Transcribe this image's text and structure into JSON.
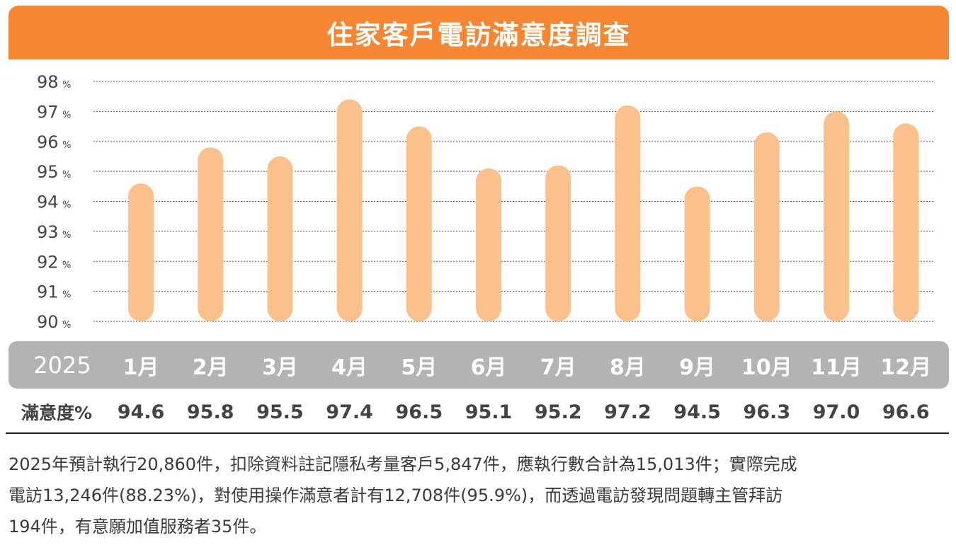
{
  "title": "住家客戶電訪滿意度調查",
  "colors": {
    "banner": "#f58634",
    "bar": "#fbc18c",
    "axis_band": "#b3b3b3"
  },
  "chart_data": {
    "type": "bar",
    "title": "住家客戶電訪滿意度調查",
    "year_label": "2025",
    "categories": [
      "1月",
      "2月",
      "3月",
      "4月",
      "5月",
      "6月",
      "7月",
      "8月",
      "9月",
      "10月",
      "11月",
      "12月"
    ],
    "values": [
      94.6,
      95.8,
      95.5,
      97.4,
      96.5,
      95.1,
      95.2,
      97.2,
      94.5,
      96.3,
      97.0,
      96.6
    ],
    "value_labels": [
      "94.6",
      "95.8",
      "95.5",
      "97.4",
      "96.5",
      "95.1",
      "95.2",
      "97.2",
      "94.5",
      "96.3",
      "97.0",
      "96.6"
    ],
    "row_label": "滿意度%",
    "ylim": [
      90,
      98
    ],
    "yticks": [
      "98",
      "97",
      "96",
      "95",
      "94",
      "93",
      "92",
      "91",
      "90"
    ],
    "ytick_unit": "%",
    "grid": true
  },
  "description": {
    "lines": [
      "2025年預計執行20,860件，扣除資料註記隱私考量客戶5,847件，應執行數合計為15,013件；實際完成",
      "電訪13,246件(88.23%)，對使用操作滿意者計有12,708件(95.9%)，而透過電訪發現問題轉主管拜訪",
      "194件，有意願加值服務者35件。"
    ]
  }
}
